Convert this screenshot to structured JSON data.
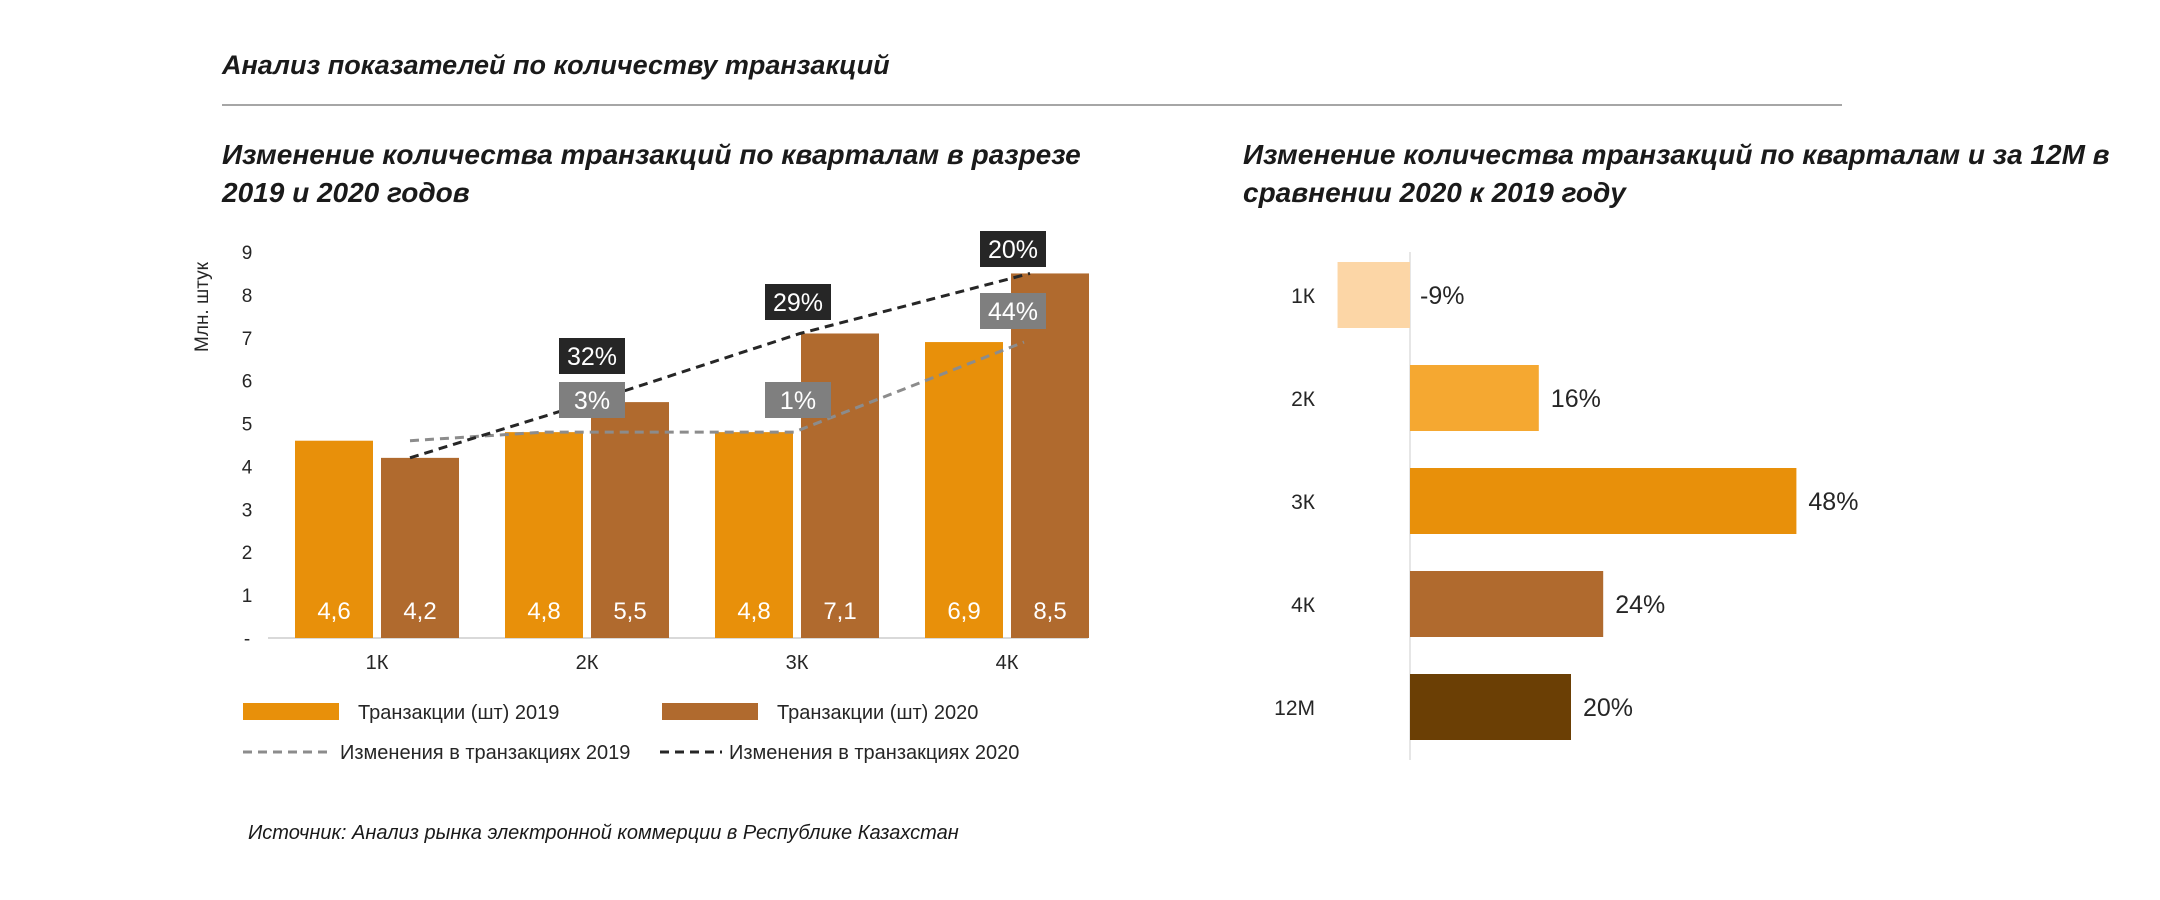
{
  "page_title": "Анализ показателей по количеству транзакций",
  "source": "Источник: Анализ рынка электронной коммерции в Республике Казахстан",
  "colors": {
    "orange": "#e8900a",
    "brown": "#b06a2e",
    "dashed_2019": "#8c8c8c",
    "dashed_2020": "#262626",
    "label_dark_bg": "#262626",
    "label_gray_bg": "#7f7f7f"
  },
  "chart_data": [
    {
      "type": "bar",
      "title": "Изменение количества транзакций по кварталам в разрезе 2019 и 2020 годов",
      "ylabel": "Млн. штук",
      "ylim": [
        0,
        9
      ],
      "yticks": [
        "-",
        "1",
        "2",
        "3",
        "4",
        "5",
        "6",
        "7",
        "8",
        "9"
      ],
      "categories": [
        "1К",
        "2К",
        "3К",
        "4К"
      ],
      "series": [
        {
          "name": "Транзакции (шт) 2019",
          "values": [
            4.6,
            4.8,
            4.8,
            6.9
          ],
          "labels": [
            "4,6",
            "4,8",
            "4,8",
            "6,9"
          ],
          "color": "#e8900a"
        },
        {
          "name": "Транзакции (шт) 2020",
          "values": [
            4.2,
            5.5,
            7.1,
            8.5
          ],
          "labels": [
            "4,2",
            "5,5",
            "7,1",
            "8,5"
          ],
          "color": "#b06a2e"
        }
      ],
      "lines": [
        {
          "name": "Изменения в транзакциях 2019",
          "labels": [
            "3%",
            "1%",
            "44%"
          ],
          "color": "#8c8c8c"
        },
        {
          "name": "Изменения в транзакциях 2020",
          "labels": [
            "32%",
            "29%",
            "20%"
          ],
          "color": "#262626"
        }
      ],
      "legend_position": "bottom"
    },
    {
      "type": "bar",
      "orientation": "horizontal",
      "title": "Изменение количества транзакций по кварталам и за 12М в сравнении 2020 к 2019 году",
      "categories": [
        "1К",
        "2К",
        "3К",
        "4К",
        "12М"
      ],
      "values": [
        -9,
        16,
        48,
        24,
        20
      ],
      "labels": [
        "-9%",
        "16%",
        "48%",
        "24%",
        "20%"
      ],
      "colors": [
        "#fcd6a6",
        "#f5a831",
        "#e8900a",
        "#b06a2e",
        "#6b3f05"
      ]
    }
  ]
}
